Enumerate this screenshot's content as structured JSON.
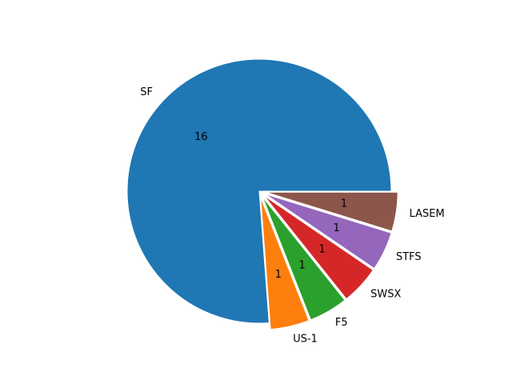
{
  "chart_data": {
    "type": "pie",
    "categories": [
      "SF",
      "US-1",
      "F5",
      "SWSX",
      "STFS",
      "LASEM"
    ],
    "values": [
      16,
      1,
      1,
      1,
      1,
      1
    ],
    "value_labels": [
      "16",
      "1",
      "1",
      "1",
      "1",
      "1"
    ],
    "colors": [
      "#1f77b4",
      "#ff7f0e",
      "#2ca02c",
      "#d62728",
      "#9467bd",
      "#8c564b"
    ],
    "explode": [
      0,
      0.05,
      0.05,
      0.05,
      0.05,
      0.05
    ],
    "start_angle_deg": 0,
    "direction": "counterclockwise",
    "title": ""
  }
}
